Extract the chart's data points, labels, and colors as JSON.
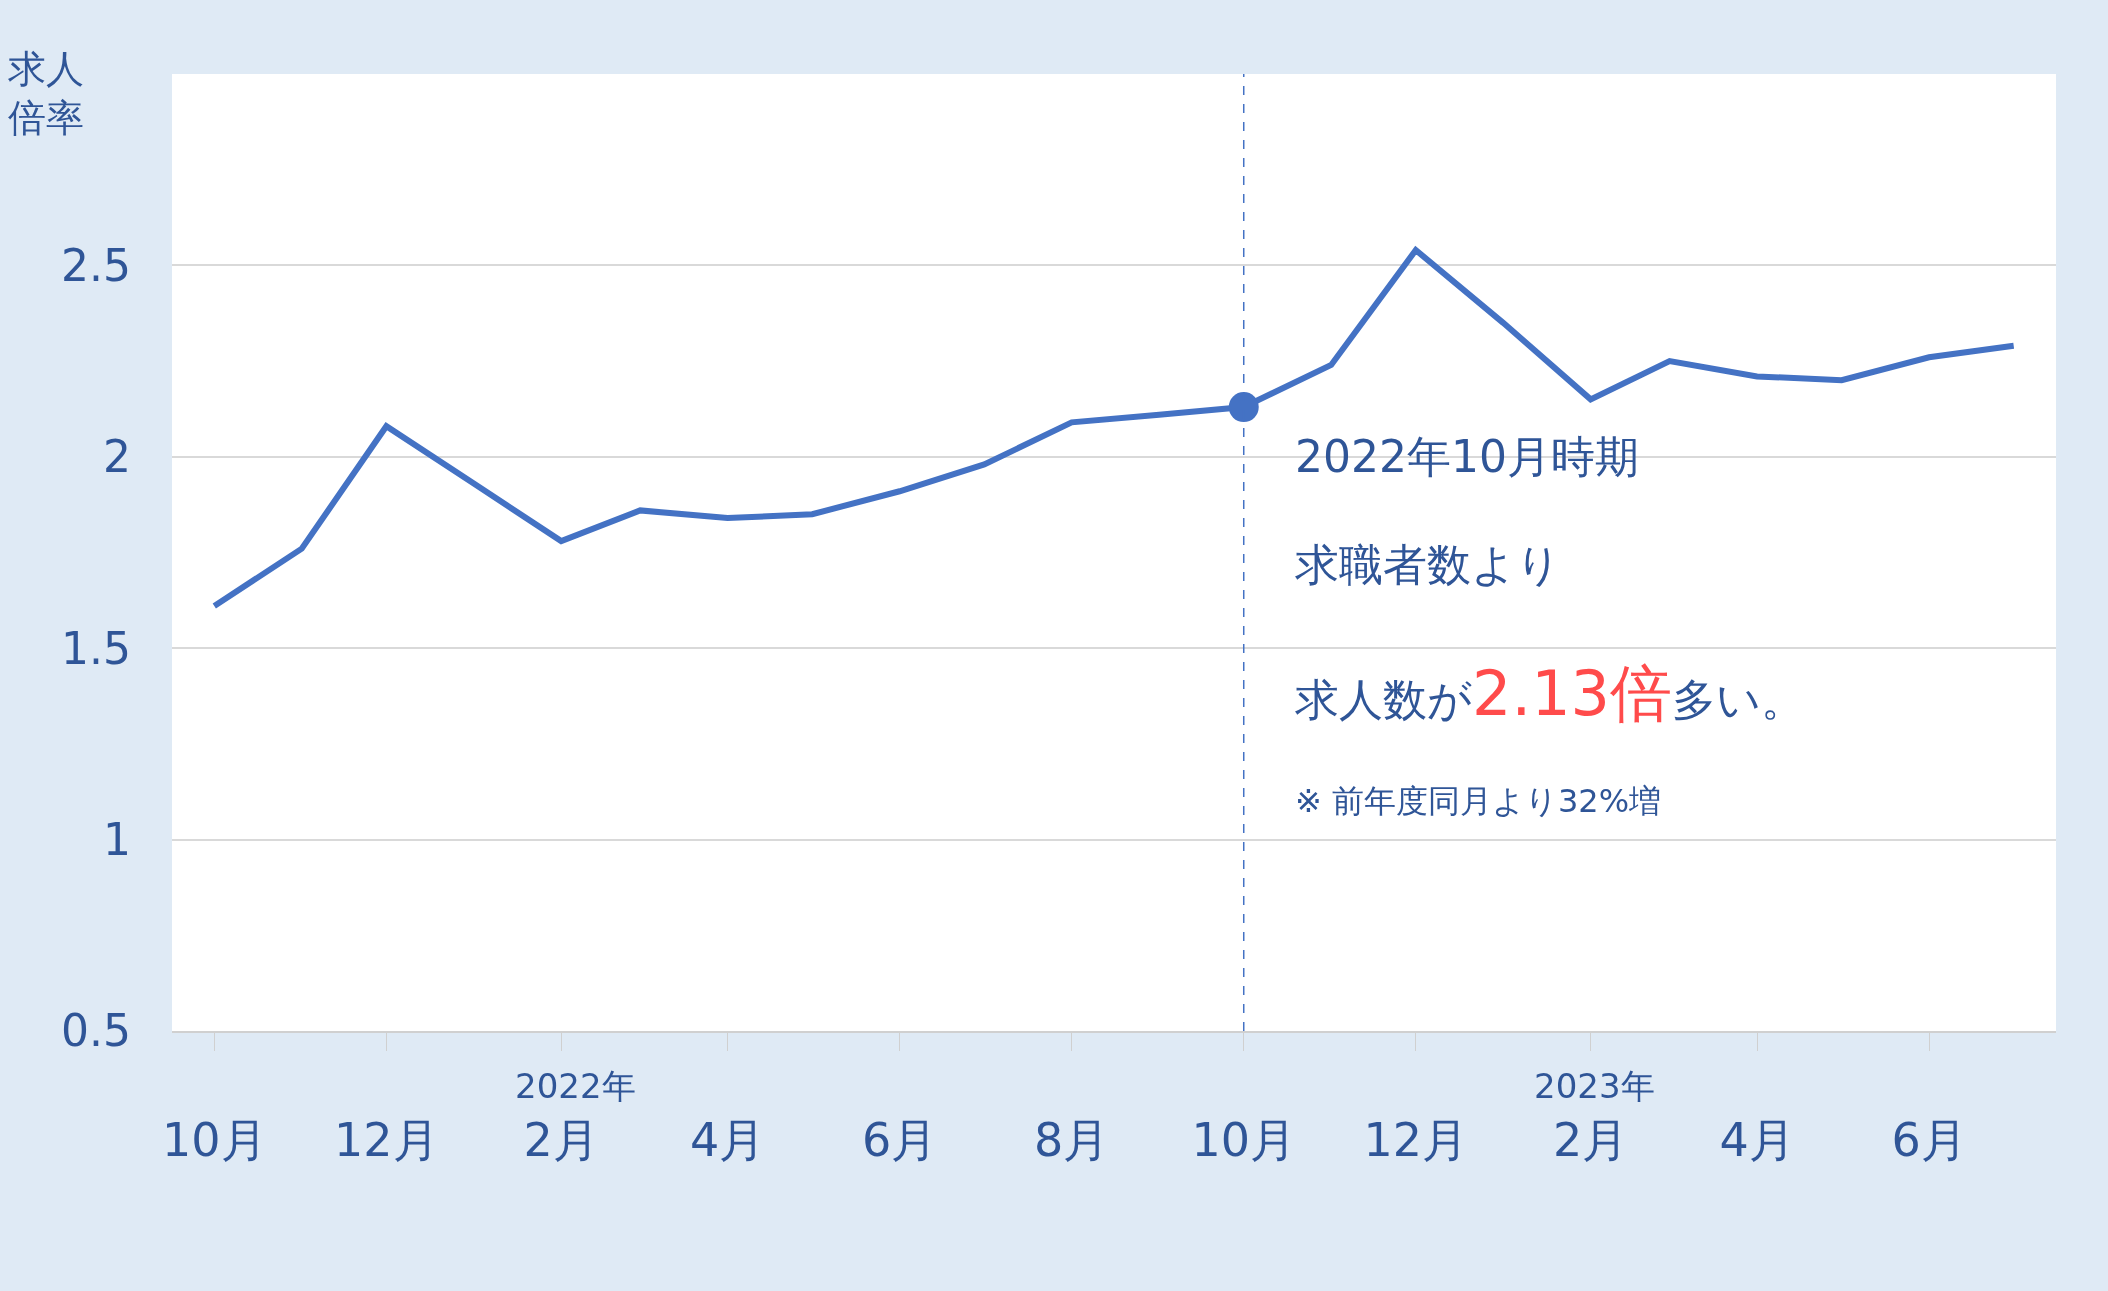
{
  "chart_data": {
    "type": "line",
    "ylabel": "求人倍率",
    "x": [
      "2021-10",
      "2021-11",
      "2021-12",
      "2022-01",
      "2022-02",
      "2022-03",
      "2022-04",
      "2022-05",
      "2022-06",
      "2022-07",
      "2022-08",
      "2022-09",
      "2022-10",
      "2022-11",
      "2022-12",
      "2023-01",
      "2023-02",
      "2023-03",
      "2023-04",
      "2023-05",
      "2023-06",
      "2023-07"
    ],
    "series": [
      {
        "color": "#4472c4",
        "marker": "none",
        "values": [
          1.61,
          1.76,
          2.08,
          1.93,
          1.78,
          1.86,
          1.84,
          1.85,
          1.91,
          1.98,
          2.09,
          2.11,
          2.13,
          2.24,
          2.54,
          2.35,
          2.15,
          2.25,
          2.21,
          2.2,
          2.26,
          2.29
        ]
      },
      {
        "type": "scatter",
        "color": "#4472c4",
        "marker": "circle",
        "x": [
          "2022-10"
        ],
        "values": [
          2.13
        ]
      }
    ],
    "xlim": [
      "2021-09-16",
      "2023-07-16"
    ],
    "xticks": [
      {
        "value": "2021-10",
        "label": "10月"
      },
      {
        "value": "2021-12",
        "label": "12月"
      },
      {
        "value": "2022-02",
        "label": "2月"
      },
      {
        "value": "2022-04",
        "label": "4月"
      },
      {
        "value": "2022-06",
        "label": "6月"
      },
      {
        "value": "2022-08",
        "label": "8月"
      },
      {
        "value": "2022-10",
        "label": "10月"
      },
      {
        "value": "2022-12",
        "label": "12月"
      },
      {
        "value": "2023-02",
        "label": "2月"
      },
      {
        "value": "2023-04",
        "label": "4月"
      },
      {
        "value": "2023-06",
        "label": "6月"
      }
    ],
    "ylim": [
      0.5,
      3.0
    ],
    "yticks": [
      0.5,
      1,
      1.5,
      2,
      2.5
    ],
    "grid": "y",
    "legend": false,
    "ref_lines": [
      {
        "axis": "x",
        "value": "2022-10",
        "color": "#4472c4",
        "line_style": "dashed"
      }
    ],
    "annotations": [
      "2022年10月時期",
      "求職者数より",
      "求人数が",
      "2.13倍",
      "多い。",
      "※ 前年度同月より32%増",
      "2022年",
      "2023年"
    ]
  }
}
